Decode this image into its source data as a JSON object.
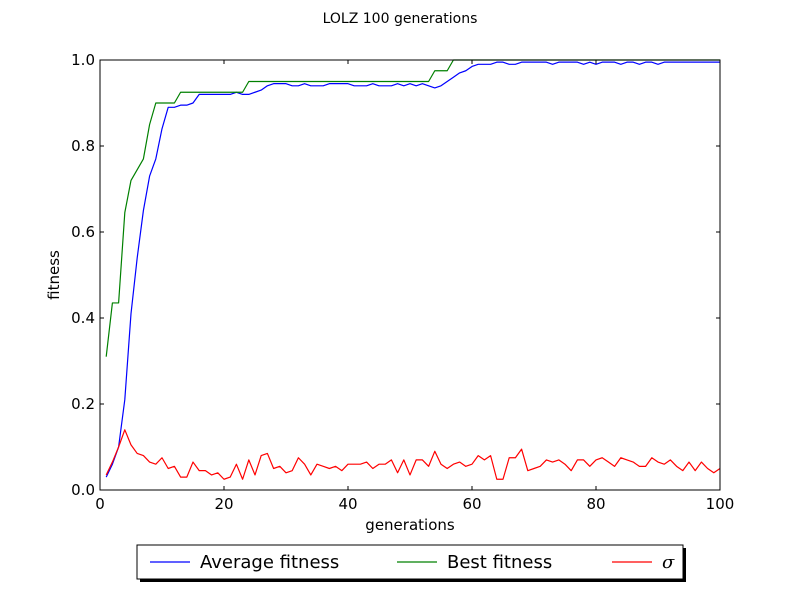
{
  "chart_data": {
    "type": "line",
    "title": "LOLZ 100 generations",
    "xlabel": "generations",
    "ylabel": "fitness",
    "xlim": [
      0,
      100
    ],
    "ylim": [
      0.0,
      1.0
    ],
    "x_ticks": [
      "0",
      "20",
      "40",
      "60",
      "80",
      "100"
    ],
    "y_ticks": [
      "0.0",
      "0.2",
      "0.4",
      "0.6",
      "0.8",
      "1.0"
    ],
    "grid": false,
    "legend_position": "bottom-center",
    "x": [
      1,
      2,
      3,
      4,
      5,
      6,
      7,
      8,
      9,
      10,
      11,
      12,
      13,
      14,
      15,
      16,
      17,
      18,
      19,
      20,
      21,
      22,
      23,
      24,
      25,
      26,
      27,
      28,
      29,
      30,
      31,
      32,
      33,
      34,
      35,
      36,
      37,
      38,
      39,
      40,
      41,
      42,
      43,
      44,
      45,
      46,
      47,
      48,
      49,
      50,
      51,
      52,
      53,
      54,
      55,
      56,
      57,
      58,
      59,
      60,
      61,
      62,
      63,
      64,
      65,
      66,
      67,
      68,
      69,
      70,
      71,
      72,
      73,
      74,
      75,
      76,
      77,
      78,
      79,
      80,
      81,
      82,
      83,
      84,
      85,
      86,
      87,
      88,
      89,
      90,
      91,
      92,
      93,
      94,
      95,
      96,
      97,
      98,
      99,
      100
    ],
    "series": [
      {
        "name": "Average fitness",
        "color": "#0000ff",
        "values": [
          0.03,
          0.06,
          0.1,
          0.21,
          0.41,
          0.54,
          0.65,
          0.73,
          0.77,
          0.84,
          0.89,
          0.89,
          0.895,
          0.895,
          0.9,
          0.92,
          0.92,
          0.92,
          0.92,
          0.92,
          0.92,
          0.925,
          0.92,
          0.92,
          0.925,
          0.93,
          0.94,
          0.945,
          0.945,
          0.945,
          0.94,
          0.94,
          0.945,
          0.94,
          0.94,
          0.94,
          0.945,
          0.945,
          0.945,
          0.945,
          0.94,
          0.94,
          0.94,
          0.945,
          0.94,
          0.94,
          0.94,
          0.945,
          0.94,
          0.945,
          0.94,
          0.945,
          0.94,
          0.935,
          0.94,
          0.95,
          0.96,
          0.97,
          0.975,
          0.985,
          0.99,
          0.99,
          0.99,
          0.995,
          0.995,
          0.99,
          0.99,
          0.995,
          0.995,
          0.995,
          0.995,
          0.995,
          0.99,
          0.995,
          0.995,
          0.995,
          0.995,
          0.99,
          0.995,
          0.99,
          0.995,
          0.995,
          0.995,
          0.99,
          0.995,
          0.995,
          0.99,
          0.995,
          0.995,
          0.99,
          0.995,
          0.995,
          0.995,
          0.995,
          0.995,
          0.995,
          0.995,
          0.995,
          0.995,
          0.995
        ]
      },
      {
        "name": "Best fitness",
        "color": "#008000",
        "values": [
          0.31,
          0.435,
          0.435,
          0.645,
          0.72,
          0.745,
          0.77,
          0.85,
          0.9,
          0.9,
          0.9,
          0.9,
          0.925,
          0.925,
          0.925,
          0.925,
          0.925,
          0.925,
          0.925,
          0.925,
          0.925,
          0.925,
          0.925,
          0.95,
          0.95,
          0.95,
          0.95,
          0.95,
          0.95,
          0.95,
          0.95,
          0.95,
          0.95,
          0.95,
          0.95,
          0.95,
          0.95,
          0.95,
          0.95,
          0.95,
          0.95,
          0.95,
          0.95,
          0.95,
          0.95,
          0.95,
          0.95,
          0.95,
          0.95,
          0.95,
          0.95,
          0.95,
          0.95,
          0.975,
          0.975,
          0.975,
          1.0,
          1.0,
          1.0,
          1.0,
          1.0,
          1.0,
          1.0,
          1.0,
          1.0,
          1.0,
          1.0,
          1.0,
          1.0,
          1.0,
          1.0,
          1.0,
          1.0,
          1.0,
          1.0,
          1.0,
          1.0,
          1.0,
          1.0,
          1.0,
          1.0,
          1.0,
          1.0,
          1.0,
          1.0,
          1.0,
          1.0,
          1.0,
          1.0,
          1.0,
          1.0,
          1.0,
          1.0,
          1.0,
          1.0,
          1.0,
          1.0,
          1.0,
          1.0,
          1.0
        ]
      },
      {
        "name": "σ",
        "color": "#ff0000",
        "values": [
          0.035,
          0.065,
          0.1,
          0.14,
          0.105,
          0.085,
          0.08,
          0.065,
          0.06,
          0.075,
          0.05,
          0.055,
          0.03,
          0.03,
          0.065,
          0.045,
          0.045,
          0.035,
          0.04,
          0.025,
          0.03,
          0.06,
          0.025,
          0.07,
          0.035,
          0.08,
          0.085,
          0.05,
          0.055,
          0.04,
          0.045,
          0.075,
          0.06,
          0.035,
          0.06,
          0.055,
          0.05,
          0.055,
          0.045,
          0.06,
          0.06,
          0.06,
          0.065,
          0.05,
          0.06,
          0.06,
          0.07,
          0.04,
          0.07,
          0.035,
          0.07,
          0.07,
          0.055,
          0.09,
          0.06,
          0.05,
          0.06,
          0.065,
          0.055,
          0.06,
          0.08,
          0.07,
          0.08,
          0.025,
          0.025,
          0.075,
          0.075,
          0.095,
          0.045,
          0.05,
          0.055,
          0.07,
          0.065,
          0.07,
          0.06,
          0.045,
          0.07,
          0.07,
          0.055,
          0.07,
          0.075,
          0.065,
          0.055,
          0.075,
          0.07,
          0.065,
          0.055,
          0.055,
          0.075,
          0.065,
          0.06,
          0.07,
          0.055,
          0.045,
          0.065,
          0.045,
          0.065,
          0.05,
          0.04,
          0.05
        ]
      }
    ]
  }
}
